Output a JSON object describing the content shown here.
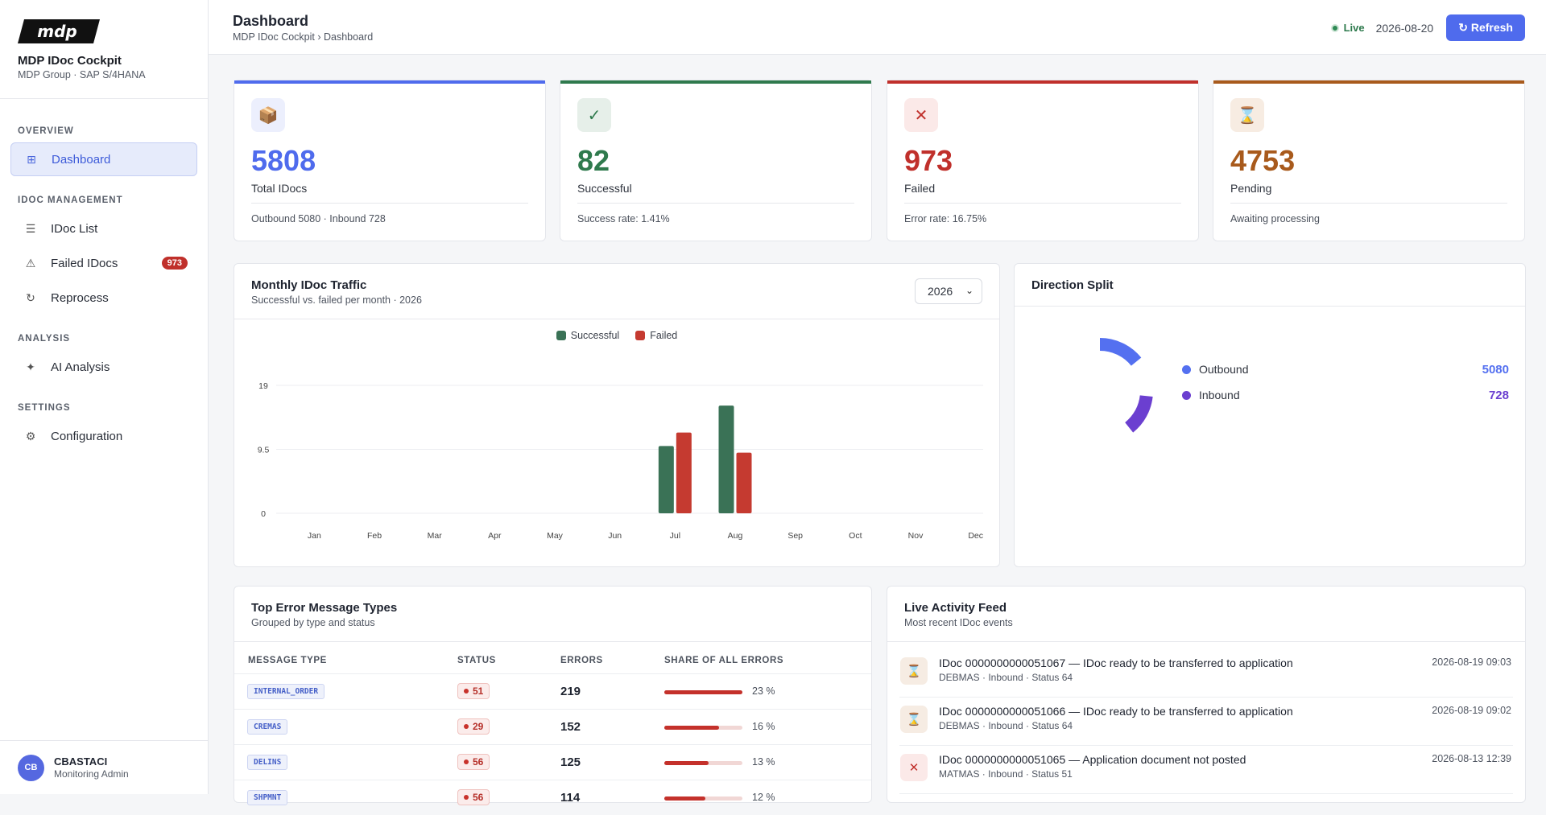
{
  "app": {
    "name": "MDP IDoc Cockpit",
    "subtitle": "MDP Group · SAP S/4HANA",
    "logo_text": "mdp"
  },
  "sidebar": {
    "sections": [
      {
        "title": "OVERVIEW",
        "items": [
          {
            "label": "Dashboard",
            "icon": "grid-icon",
            "glyph": "⊞",
            "active": true
          }
        ]
      },
      {
        "title": "IDOC MANAGEMENT",
        "items": [
          {
            "label": "IDoc List",
            "icon": "list-icon",
            "glyph": "☰"
          },
          {
            "label": "Failed IDocs",
            "icon": "warning-icon",
            "glyph": "⚠",
            "badge": "973"
          },
          {
            "label": "Reprocess",
            "icon": "refresh-icon",
            "glyph": "↻"
          }
        ]
      },
      {
        "title": "ANALYSIS",
        "items": [
          {
            "label": "AI Analysis",
            "icon": "sparkle-icon",
            "glyph": "✦"
          }
        ]
      },
      {
        "title": "SETTINGS",
        "items": [
          {
            "label": "Configuration",
            "icon": "gear-icon",
            "glyph": "⚙"
          }
        ]
      }
    ]
  },
  "user": {
    "initials": "CB",
    "name": "CBASTACI",
    "role": "Monitoring Admin"
  },
  "header": {
    "title": "Dashboard",
    "breadcrumb": "MDP IDoc Cockpit › Dashboard",
    "live_label": "Live",
    "date": "2026-08-20",
    "refresh_label": "↻ Refresh"
  },
  "kpis": [
    {
      "value": "5808",
      "label": "Total IDocs",
      "note": "Outbound 5080 · Inbound 728",
      "color": "#4f6bed",
      "icon": "package-icon",
      "glyph": "📦",
      "icon_bg": "#eceffd"
    },
    {
      "value": "82",
      "label": "Successful",
      "note": "Success rate: 1.41%",
      "color": "#2f7a4d",
      "icon": "check-icon",
      "glyph": "✓",
      "icon_bg": "#e6efe9"
    },
    {
      "value": "973",
      "label": "Failed",
      "note": "Error rate: 16.75%",
      "color": "#c0302b",
      "icon": "close-icon",
      "glyph": "✕",
      "icon_bg": "#fbe9e8"
    },
    {
      "value": "4753",
      "label": "Pending",
      "note": "Awaiting processing",
      "color": "#a85a1c",
      "icon": "hourglass-icon",
      "glyph": "⌛",
      "icon_bg": "#f7ece2"
    }
  ],
  "traffic": {
    "title": "Monthly IDoc Traffic",
    "subtitle": "Successful vs. failed per month · 2026",
    "year": "2026"
  },
  "chart_data": {
    "type": "bar",
    "categories": [
      "Jan",
      "Feb",
      "Mar",
      "Apr",
      "May",
      "Jun",
      "Jul",
      "Aug",
      "Sep",
      "Oct",
      "Nov",
      "Dec"
    ],
    "series": [
      {
        "name": "Successful",
        "color": "#3a7256",
        "values": [
          0,
          0,
          0,
          0,
          0,
          0,
          10,
          16,
          0,
          0,
          0,
          0
        ]
      },
      {
        "name": "Failed",
        "color": "#c53a30",
        "values": [
          0,
          0,
          0,
          0,
          0,
          0,
          12,
          9,
          0,
          0,
          0,
          0
        ]
      }
    ],
    "yticks": [
      "19",
      "9.5",
      "0"
    ],
    "ylim": [
      0,
      19
    ],
    "grid": true,
    "legend": "top-center"
  },
  "direction": {
    "title": "Direction Split",
    "items": [
      {
        "label": "Outbound",
        "value": "5080",
        "color": "#5470f0"
      },
      {
        "label": "Inbound",
        "value": "728",
        "color": "#6b3fd0"
      }
    ]
  },
  "errors": {
    "title": "Top Error Message Types",
    "subtitle": "Grouped by type and status",
    "columns": [
      "MESSAGE TYPE",
      "STATUS",
      "ERRORS",
      "SHARE OF ALL ERRORS"
    ],
    "rows": [
      {
        "type": "INTERNAL_ORDER",
        "status": "51",
        "errors": "219",
        "share": "23 %",
        "share_pct": 23
      },
      {
        "type": "CREMAS",
        "status": "29",
        "errors": "152",
        "share": "16 %",
        "share_pct": 16
      },
      {
        "type": "DELINS",
        "status": "56",
        "errors": "125",
        "share": "13 %",
        "share_pct": 13
      },
      {
        "type": "SHPMNT",
        "status": "56",
        "errors": "114",
        "share": "12 %",
        "share_pct": 12
      }
    ]
  },
  "feed": {
    "title": "Live Activity Feed",
    "subtitle": "Most recent IDoc events",
    "items": [
      {
        "title": "IDoc 0000000000051067 — IDoc ready to be transferred to application",
        "meta": "DEBMAS · Inbound · Status 64",
        "time": "2026-08-19 09:03",
        "icon": "hourglass-icon",
        "glyph": "⌛",
        "bg": "#f6ece3",
        "fg": "#a85a1c"
      },
      {
        "title": "IDoc 0000000000051066 — IDoc ready to be transferred to application",
        "meta": "DEBMAS · Inbound · Status 64",
        "time": "2026-08-19 09:02",
        "icon": "hourglass-icon",
        "glyph": "⌛",
        "bg": "#f6ece3",
        "fg": "#a85a1c"
      },
      {
        "title": "IDoc 0000000000051065 — Application document not posted",
        "meta": "MATMAS · Inbound · Status 51",
        "time": "2026-08-13 12:39",
        "icon": "close-icon",
        "glyph": "✕",
        "bg": "#fbe9e8",
        "fg": "#c0302b"
      }
    ]
  }
}
